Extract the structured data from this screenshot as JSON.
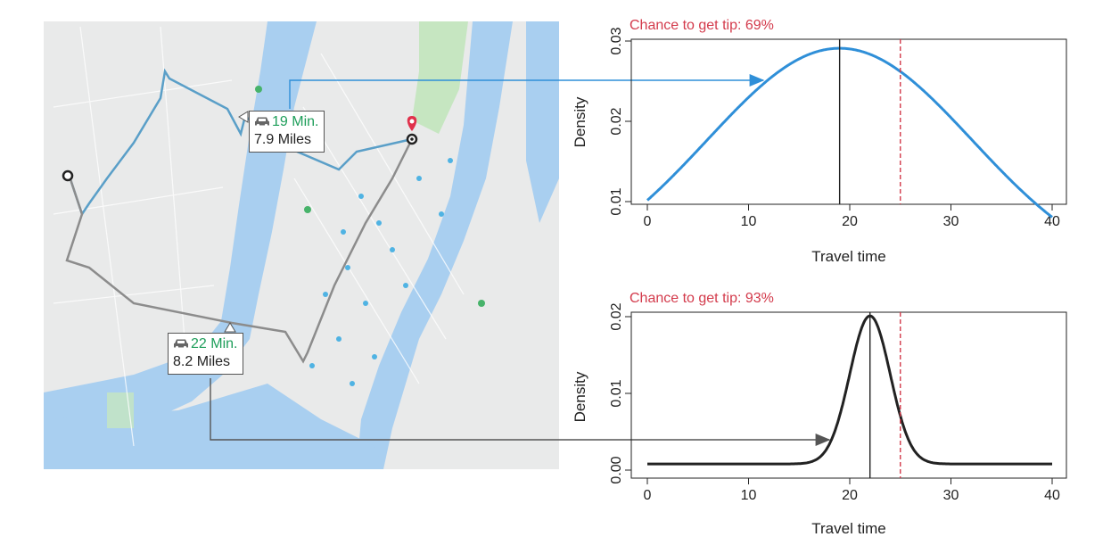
{
  "colors": {
    "blue_curve": "#2f8fd8",
    "black_curve": "#222222",
    "threshold": "#d33a4b",
    "minutes_text": "#1e9e5a",
    "water": "#a9cff0",
    "land": "#e9eaea",
    "park": "#c6e6c1"
  },
  "map": {
    "route_top": {
      "minutes": "19 Min.",
      "miles": "7.9 Miles",
      "icon": "car-icon"
    },
    "route_bottom": {
      "minutes": "22 Min.",
      "miles": "8.2 Miles",
      "icon": "car-icon"
    },
    "icons": [
      "start-marker-icon",
      "destination-pin-icon",
      "car-icon"
    ]
  },
  "chart_data": [
    {
      "type": "line",
      "title": "Chance to get tip: 69%",
      "xlabel": "Travel time",
      "ylabel": "Density",
      "xlim": [
        0,
        40
      ],
      "ylim": [
        0.01,
        0.03
      ],
      "xticks": [
        "0",
        "10",
        "20",
        "30",
        "40"
      ],
      "yticks": [
        "0.01",
        "0.02",
        "0.03"
      ],
      "series": [
        {
          "name": "",
          "distribution": "normal",
          "mean": 19,
          "sd": 13.1,
          "x": [
            0,
            5,
            10,
            15,
            19,
            25,
            30,
            35,
            40
          ],
          "y": [
            0.0124,
            0.0178,
            0.024,
            0.0289,
            0.03,
            0.028,
            0.0224,
            0.0159,
            0.011
          ]
        }
      ],
      "mean_line": 19,
      "threshold_line": 25,
      "grid": false
    },
    {
      "type": "line",
      "title": "Chance to get tip: 93%",
      "xlabel": "Travel time",
      "ylabel": "Density",
      "xlim": [
        0,
        40
      ],
      "ylim": [
        0,
        0.02
      ],
      "xticks": [
        "0",
        "10",
        "20",
        "30",
        "40"
      ],
      "yticks": [
        "0.00",
        "0.01",
        "0.02"
      ],
      "series": [
        {
          "name": "",
          "distribution": "normal_plus_baseline",
          "mean": 22,
          "sd": 2.0,
          "peak": 0.0193,
          "baseline": 0.0008,
          "x": [
            0,
            10,
            16,
            18,
            20,
            22,
            24,
            26,
            28,
            40
          ],
          "y": [
            0.0008,
            0.0008,
            0.0011,
            0.0032,
            0.0123,
            0.0201,
            0.0123,
            0.0032,
            0.0011,
            0.0008
          ]
        }
      ],
      "mean_line": 22,
      "threshold_line": 25,
      "grid": false
    }
  ]
}
